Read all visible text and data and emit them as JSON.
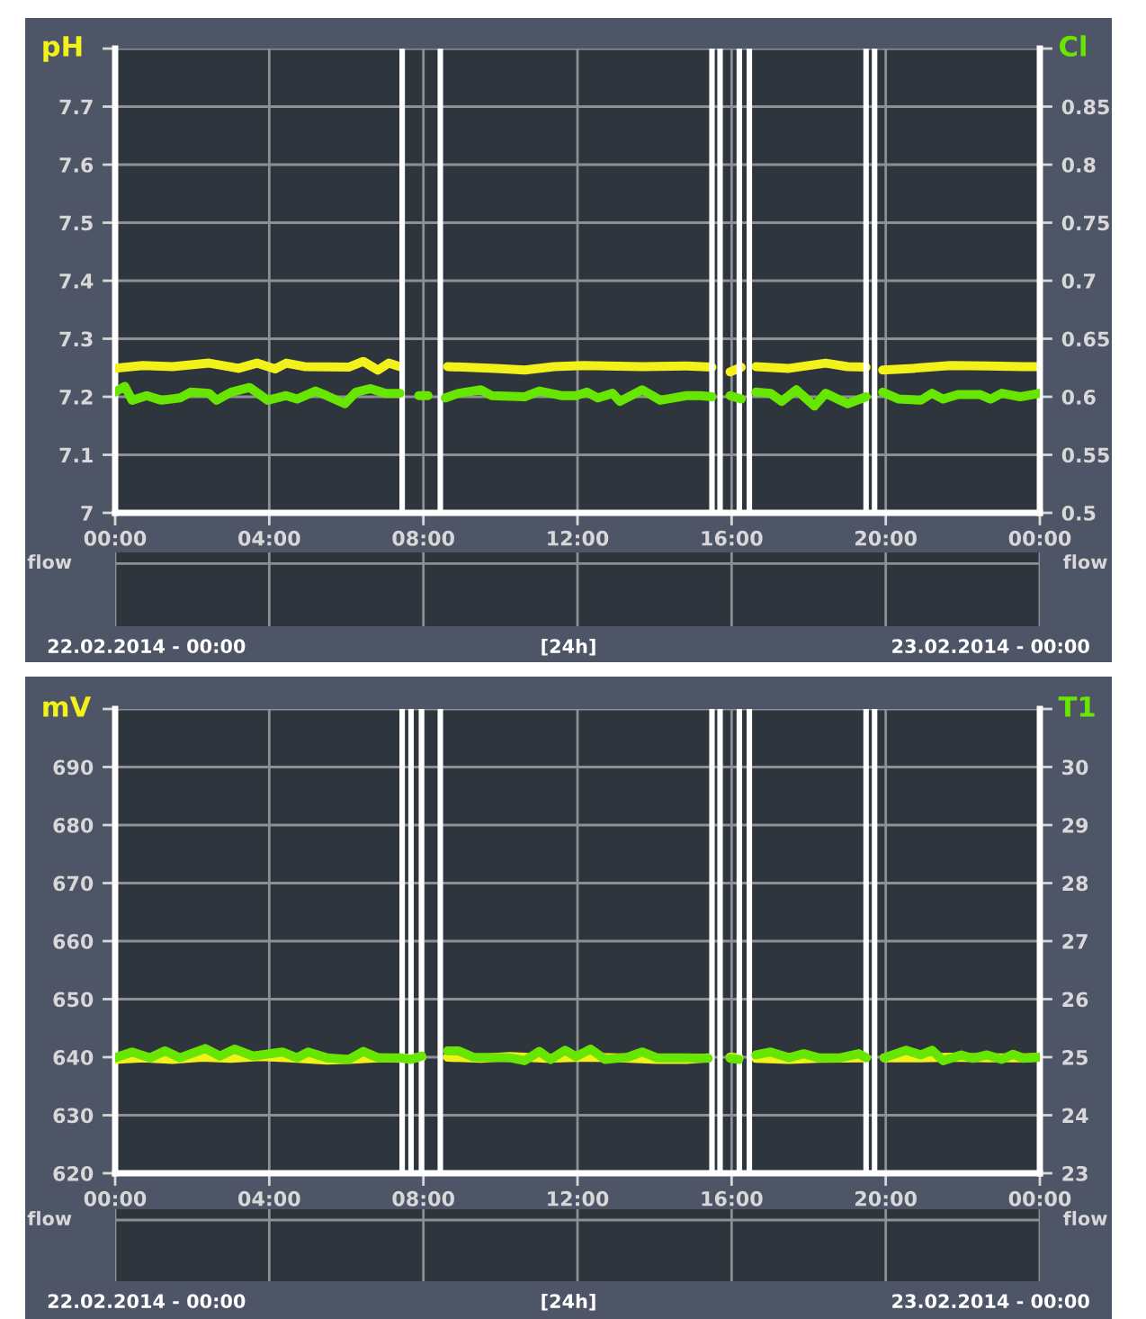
{
  "chart_data": [
    {
      "type": "line",
      "ylabel": "pH",
      "y2label": "Cl",
      "xlim": [
        0,
        24
      ],
      "xticks": [
        {
          "value": 0,
          "label": "00:00"
        },
        {
          "value": 4,
          "label": "04:00"
        },
        {
          "value": 8,
          "label": "08:00"
        },
        {
          "value": 12,
          "label": "12:00"
        },
        {
          "value": 16,
          "label": "16:00"
        },
        {
          "value": 20,
          "label": "20:00"
        },
        {
          "value": 24,
          "label": "00:00"
        }
      ],
      "ylim": [
        7,
        7.8
      ],
      "yticks": [
        7,
        7.1,
        7.2,
        7.3,
        7.4,
        7.5,
        7.6,
        7.7,
        {
          "value": 7.8,
          "label": null
        }
      ],
      "y2lim": [
        0.5,
        0.9
      ],
      "y2ticks": [
        0.5,
        0.55,
        0.6,
        0.65,
        0.7,
        0.75,
        0.8,
        0.85,
        {
          "value": 0.9,
          "label": null
        }
      ],
      "grid": true,
      "marker": "none",
      "line_style": "solid",
      "series": [
        {
          "color": "#f2f21a",
          "x": [
            0,
            0.72,
            1.49,
            2.44,
            3.2,
            3.68,
            4.15,
            4.44,
            4.91,
            6.06,
            6.44,
            6.82,
            7.1,
            7.39,
            8.0,
            8.63,
            9.87,
            10.63,
            11.39,
            12.15,
            13.68,
            14.82,
            15.49,
            15.7,
            15.96,
            16.25,
            16.45,
            16.63,
            17.49,
            18.44,
            19.01,
            19.49,
            19.7,
            19.92,
            20.72,
            21.68,
            22.63,
            23.58,
            24
          ],
          "values": [
            7.249,
            7.254,
            7.252,
            7.258,
            7.249,
            7.258,
            7.248,
            7.258,
            7.252,
            7.251,
            7.261,
            7.246,
            7.258,
            7.252,
            null,
            7.252,
            7.249,
            7.246,
            7.252,
            7.254,
            7.252,
            7.253,
            7.251,
            null,
            7.243,
            7.251,
            null,
            7.252,
            7.249,
            7.258,
            7.252,
            7.251,
            null,
            7.246,
            7.249,
            7.254,
            7.253,
            7.252,
            7.252
          ]
        },
        {
          "color": "#66e600",
          "axis": "y2",
          "x": [
            0,
            0.25,
            0.44,
            0.82,
            1.2,
            1.68,
            1.96,
            2.44,
            2.63,
            3.01,
            3.49,
            3.96,
            4.44,
            4.72,
            5.2,
            5.49,
            5.96,
            6.25,
            6.63,
            7.01,
            7.39,
            7.7,
            7.88,
            8.12,
            8.3,
            8.57,
            8.91,
            9.49,
            9.77,
            10.63,
            11.01,
            11.58,
            11.96,
            12.25,
            12.53,
            12.91,
            13.1,
            13.68,
            14.15,
            14.82,
            15.2,
            15.49,
            15.7,
            15.96,
            16.25,
            16.45,
            16.63,
            17.01,
            17.3,
            17.68,
            18.15,
            18.44,
            19.01,
            19.49,
            19.7,
            19.92,
            20.34,
            20.91,
            21.2,
            21.49,
            21.87,
            22.44,
            22.72,
            23.01,
            23.49,
            24
          ],
          "values": [
            0.604,
            0.609,
            0.597,
            0.601,
            0.597,
            0.599,
            0.604,
            0.603,
            0.597,
            0.604,
            0.608,
            0.597,
            0.601,
            0.598,
            0.605,
            0.601,
            0.594,
            0.604,
            0.607,
            0.603,
            0.603,
            null,
            0.601,
            0.601,
            null,
            0.599,
            0.603,
            0.606,
            0.601,
            0.6,
            0.605,
            0.601,
            0.601,
            0.604,
            0.599,
            0.603,
            0.596,
            0.606,
            0.597,
            0.601,
            0.601,
            0.6,
            null,
            0.601,
            0.598,
            null,
            0.604,
            0.603,
            0.596,
            0.606,
            0.592,
            0.603,
            0.594,
            0.6,
            null,
            0.604,
            0.598,
            0.597,
            0.603,
            0.598,
            0.602,
            0.602,
            0.598,
            0.603,
            0.6,
            0.603
          ]
        }
      ],
      "ref_lines": [
        {
          "axis": "x",
          "value": 7.45,
          "color": "#ffffff"
        },
        {
          "axis": "x",
          "value": 8.44,
          "color": "#ffffff"
        },
        {
          "axis": "x",
          "value": 15.49,
          "color": "#ffffff"
        },
        {
          "axis": "x",
          "value": 15.7,
          "color": "#ffffff"
        },
        {
          "axis": "x",
          "value": 16.2,
          "color": "#ffffff"
        },
        {
          "axis": "x",
          "value": 16.46,
          "color": "#ffffff"
        },
        {
          "axis": "x",
          "value": 19.49,
          "color": "#ffffff"
        },
        {
          "axis": "x",
          "value": 19.71,
          "color": "#ffffff"
        }
      ]
    },
    {
      "type": "other",
      "ylabel": "flow",
      "y2label": "flow",
      "annotations": [
        "22.02.2014 - 00:00",
        "[24h]",
        "23.02.2014 - 00:00"
      ]
    },
    {
      "type": "line",
      "ylabel": "mV",
      "y2label": "T1",
      "xlim": [
        0,
        24
      ],
      "xticks": [
        {
          "value": 0,
          "label": "00:00"
        },
        {
          "value": 4,
          "label": "04:00"
        },
        {
          "value": 8,
          "label": "08:00"
        },
        {
          "value": 12,
          "label": "12:00"
        },
        {
          "value": 16,
          "label": "16:00"
        },
        {
          "value": 20,
          "label": "20:00"
        },
        {
          "value": 24,
          "label": "00:00"
        }
      ],
      "ylim": [
        620,
        700
      ],
      "yticks": [
        620,
        630,
        640,
        650,
        660,
        670,
        680,
        690,
        {
          "value": 700,
          "label": null
        }
      ],
      "y2lim": [
        23,
        31
      ],
      "y2ticks": [
        23,
        24,
        25,
        26,
        27,
        28,
        29,
        30,
        {
          "value": 31,
          "label": null
        }
      ],
      "grid": true,
      "marker": "none",
      "line_style": "solid",
      "series": [
        {
          "color": "#f2f21a",
          "x": [
            0,
            0.72,
            1.49,
            2.25,
            3.01,
            3.77,
            4.53,
            5.49,
            6.06,
            6.82,
            7.58,
            7.96,
            8.2,
            8.63,
            9.49,
            10.25,
            11.2,
            12.15,
            13.1,
            14.06,
            14.82,
            15.39,
            15.7,
            15.96,
            16.19,
            16.4,
            16.63,
            17.49,
            18.25,
            19.49,
            19.7,
            19.96,
            20.91,
            21.68,
            22.63,
            23.58,
            24
          ],
          "values": [
            639.6,
            639.9,
            639.6,
            640.0,
            639.8,
            640.1,
            639.9,
            639.5,
            639.6,
            639.9,
            639.8,
            640.0,
            null,
            640.0,
            639.8,
            640.1,
            639.8,
            640.0,
            639.9,
            639.6,
            639.6,
            639.9,
            null,
            640.0,
            639.9,
            null,
            639.8,
            639.6,
            639.8,
            639.9,
            null,
            639.9,
            639.9,
            640.0,
            639.9,
            639.9,
            640.0
          ]
        },
        {
          "color": "#66e600",
          "axis": "y2",
          "x": [
            0,
            0.44,
            0.91,
            1.3,
            1.68,
            2.34,
            2.72,
            3.1,
            3.58,
            4.34,
            4.72,
            5.01,
            5.49,
            6.06,
            6.44,
            6.82,
            7.39,
            7.68,
            7.96,
            8.2,
            8.63,
            8.91,
            9.3,
            10.25,
            10.63,
            11.01,
            11.3,
            11.68,
            11.96,
            12.34,
            12.72,
            13.3,
            13.68,
            14.06,
            14.82,
            15.39,
            15.7,
            15.96,
            16.19,
            16.4,
            16.63,
            17.01,
            17.49,
            17.87,
            18.25,
            18.82,
            19.3,
            19.49,
            19.7,
            19.96,
            20.53,
            20.91,
            21.2,
            21.49,
            21.96,
            22.25,
            22.63,
            23.01,
            23.3,
            23.58,
            24
          ],
          "values": [
            24.99,
            25.09,
            24.99,
            25.11,
            24.99,
            25.15,
            25.02,
            25.14,
            25.02,
            25.09,
            24.99,
            25.09,
            24.99,
            24.96,
            25.1,
            24.99,
            24.99,
            24.96,
            25.02,
            null,
            25.11,
            25.11,
            25.0,
            24.99,
            24.94,
            25.1,
            24.96,
            25.12,
            25.01,
            25.14,
            24.96,
            25.0,
            25.09,
            24.99,
            24.99,
            24.98,
            null,
            24.98,
            24.96,
            null,
            25.04,
            25.09,
            24.99,
            25.06,
            24.99,
            24.99,
            25.06,
            24.99,
            null,
            24.99,
            25.12,
            25.04,
            25.12,
            24.94,
            25.04,
            24.98,
            25.04,
            24.96,
            25.05,
            24.98,
            25.0
          ]
        }
      ],
      "ref_lines": [
        {
          "axis": "x",
          "value": 7.45,
          "color": "#ffffff"
        },
        {
          "axis": "x",
          "value": 7.68,
          "color": "#ffffff"
        },
        {
          "axis": "x",
          "value": 7.95,
          "color": "#ffffff"
        },
        {
          "axis": "x",
          "value": 8.44,
          "color": "#ffffff"
        },
        {
          "axis": "x",
          "value": 15.49,
          "color": "#ffffff"
        },
        {
          "axis": "x",
          "value": 15.7,
          "color": "#ffffff"
        },
        {
          "axis": "x",
          "value": 16.2,
          "color": "#ffffff"
        },
        {
          "axis": "x",
          "value": 16.46,
          "color": "#ffffff"
        },
        {
          "axis": "x",
          "value": 19.49,
          "color": "#ffffff"
        },
        {
          "axis": "x",
          "value": 19.71,
          "color": "#ffffff"
        }
      ]
    },
    {
      "type": "other",
      "ylabel": "flow",
      "y2label": "flow",
      "annotations": [
        "22.02.2014 - 00:00",
        "[24h]",
        "23.02.2014 - 00:00"
      ]
    }
  ]
}
